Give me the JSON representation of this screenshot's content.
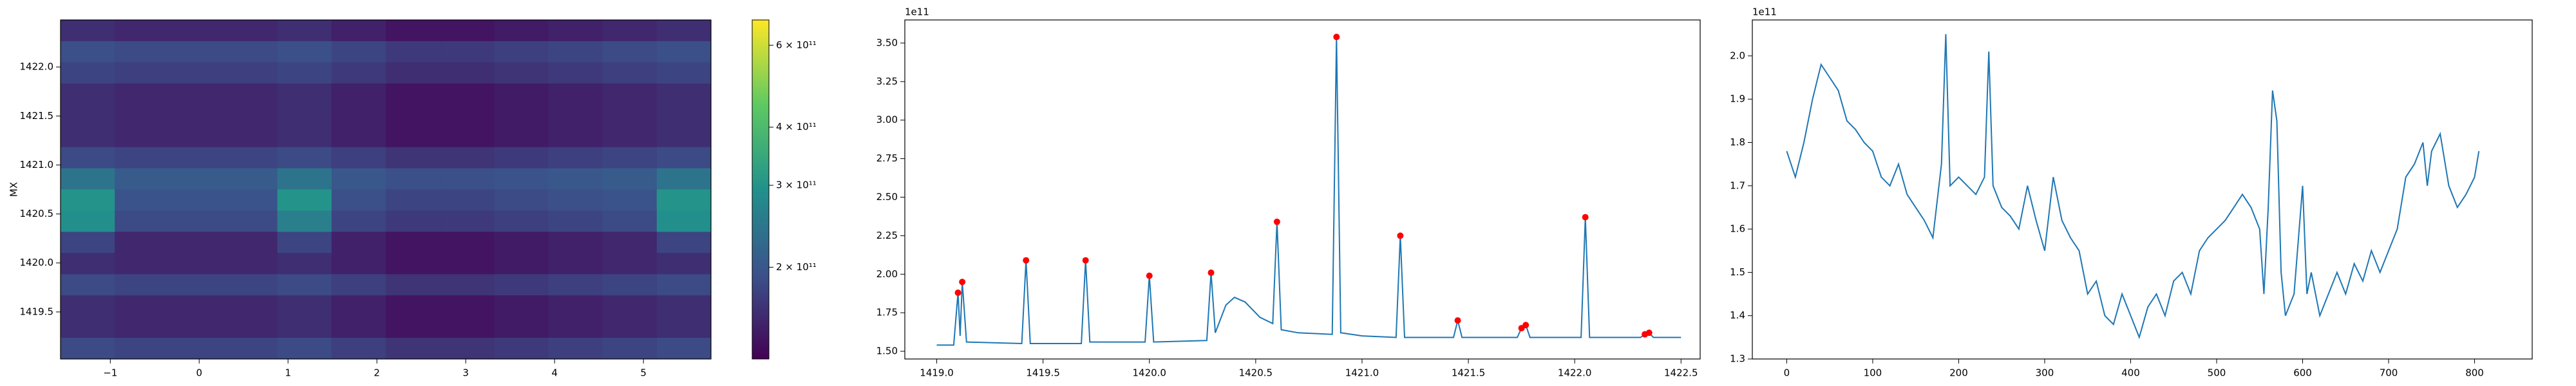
{
  "chart_data": [
    {
      "type": "heatmap",
      "ylabel": "MX",
      "xlim": [
        -1.56,
        5.76
      ],
      "ylim": [
        1419.02,
        1422.48
      ],
      "xticks": [
        {
          "value": -1,
          "label": "−1"
        },
        0,
        1,
        2,
        3,
        4,
        5
      ],
      "yticks": [
        1419.5,
        {
          "value": 1420,
          "label": "1420.0"
        },
        1420.5,
        {
          "value": 1421,
          "label": "1421.0"
        },
        1421.5,
        {
          "value": 1422,
          "label": "1422.0"
        }
      ],
      "colormap": "viridis",
      "color_scale": "log",
      "clim": [
        127000000000.0,
        680000000000.0
      ],
      "cticks": [
        {
          "value": 200000000000.0,
          "label": "2 × 10¹¹"
        },
        {
          "value": 300000000000.0,
          "label": "3 × 10¹¹"
        },
        {
          "value": 400000000000.0,
          "label": "4 × 10¹¹"
        },
        {
          "value": 600000000000.0,
          "label": "6 × 10¹¹"
        }
      ],
      "z": [
        [
          160000000000.0,
          155000000000.0,
          155000000000.0,
          155000000000.0,
          160000000000.0,
          150000000000.0,
          140000000000.0,
          140000000000.0,
          145000000000.0,
          150000000000.0,
          155000000000.0,
          160000000000.0
        ],
        [
          190000000000.0,
          185000000000.0,
          185000000000.0,
          185000000000.0,
          190000000000.0,
          180000000000.0,
          170000000000.0,
          170000000000.0,
          175000000000.0,
          180000000000.0,
          185000000000.0,
          190000000000.0
        ],
        [
          180000000000.0,
          175000000000.0,
          175000000000.0,
          175000000000.0,
          180000000000.0,
          170000000000.0,
          160000000000.0,
          160000000000.0,
          165000000000.0,
          170000000000.0,
          175000000000.0,
          180000000000.0
        ],
        [
          160000000000.0,
          155000000000.0,
          155000000000.0,
          155000000000.0,
          160000000000.0,
          150000000000.0,
          140000000000.0,
          140000000000.0,
          145000000000.0,
          150000000000.0,
          155000000000.0,
          160000000000.0
        ],
        [
          160000000000.0,
          155000000000.0,
          155000000000.0,
          155000000000.0,
          160000000000.0,
          150000000000.0,
          140000000000.0,
          140000000000.0,
          145000000000.0,
          150000000000.0,
          155000000000.0,
          160000000000.0
        ],
        [
          160000000000.0,
          155000000000.0,
          155000000000.0,
          155000000000.0,
          160000000000.0,
          150000000000.0,
          140000000000.0,
          140000000000.0,
          145000000000.0,
          150000000000.0,
          155000000000.0,
          160000000000.0
        ],
        [
          185000000000.0,
          180000000000.0,
          180000000000.0,
          180000000000.0,
          185000000000.0,
          175000000000.0,
          165000000000.0,
          165000000000.0,
          170000000000.0,
          175000000000.0,
          180000000000.0,
          185000000000.0
        ],
        [
          240000000000.0,
          205000000000.0,
          205000000000.0,
          205000000000.0,
          240000000000.0,
          200000000000.0,
          190000000000.0,
          190000000000.0,
          195000000000.0,
          200000000000.0,
          205000000000.0,
          240000000000.0
        ],
        [
          300000000000.0,
          195000000000.0,
          195000000000.0,
          195000000000.0,
          300000000000.0,
          190000000000.0,
          180000000000.0,
          180000000000.0,
          185000000000.0,
          190000000000.0,
          195000000000.0,
          300000000000.0
        ],
        [
          290000000000.0,
          185000000000.0,
          185000000000.0,
          185000000000.0,
          260000000000.0,
          180000000000.0,
          170000000000.0,
          170000000000.0,
          175000000000.0,
          180000000000.0,
          185000000000.0,
          290000000000.0
        ],
        [
          180000000000.0,
          155000000000.0,
          155000000000.0,
          155000000000.0,
          180000000000.0,
          150000000000.0,
          140000000000.0,
          140000000000.0,
          145000000000.0,
          150000000000.0,
          155000000000.0,
          180000000000.0
        ],
        [
          160000000000.0,
          155000000000.0,
          155000000000.0,
          155000000000.0,
          160000000000.0,
          150000000000.0,
          140000000000.0,
          140000000000.0,
          145000000000.0,
          150000000000.0,
          155000000000.0,
          160000000000.0
        ],
        [
          185000000000.0,
          180000000000.0,
          180000000000.0,
          180000000000.0,
          185000000000.0,
          175000000000.0,
          165000000000.0,
          165000000000.0,
          170000000000.0,
          175000000000.0,
          180000000000.0,
          185000000000.0
        ],
        [
          160000000000.0,
          155000000000.0,
          155000000000.0,
          155000000000.0,
          160000000000.0,
          150000000000.0,
          140000000000.0,
          140000000000.0,
          145000000000.0,
          150000000000.0,
          155000000000.0,
          160000000000.0
        ],
        [
          160000000000.0,
          155000000000.0,
          155000000000.0,
          155000000000.0,
          160000000000.0,
          150000000000.0,
          140000000000.0,
          140000000000.0,
          145000000000.0,
          150000000000.0,
          155000000000.0,
          160000000000.0
        ],
        [
          185000000000.0,
          180000000000.0,
          180000000000.0,
          180000000000.0,
          185000000000.0,
          175000000000.0,
          165000000000.0,
          165000000000.0,
          170000000000.0,
          175000000000.0,
          180000000000.0,
          185000000000.0
        ]
      ]
    },
    {
      "type": "line",
      "offset_label": "1e11",
      "color": "#1f77b4",
      "xlim": [
        1418.85,
        1422.59
      ],
      "ylim": [
        1.45,
        3.65
      ],
      "xticks": [
        {
          "value": 1419,
          "label": "1419.0"
        },
        1419.5,
        {
          "value": 1420,
          "label": "1420.0"
        },
        1420.5,
        {
          "value": 1421,
          "label": "1421.0"
        },
        1421.5,
        {
          "value": 1422,
          "label": "1422.0"
        },
        1422.5
      ],
      "yticks": [
        {
          "value": 1.5,
          "label": "1.50"
        },
        1.75,
        {
          "value": 2,
          "label": "2.00"
        },
        2.25,
        {
          "value": 2.5,
          "label": "2.50"
        },
        2.75,
        {
          "value": 3,
          "label": "3.00"
        },
        3.25,
        {
          "value": 3.5,
          "label": "3.50"
        }
      ],
      "x": [
        1419.0,
        1419.08,
        1419.1,
        1419.11,
        1419.12,
        1419.14,
        1419.4,
        1419.42,
        1419.44,
        1419.68,
        1419.7,
        1419.72,
        1419.98,
        1420.0,
        1420.02,
        1420.27,
        1420.29,
        1420.31,
        1420.36,
        1420.4,
        1420.45,
        1420.52,
        1420.58,
        1420.6,
        1420.62,
        1420.7,
        1420.86,
        1420.88,
        1420.9,
        1421.0,
        1421.16,
        1421.18,
        1421.2,
        1421.43,
        1421.45,
        1421.47,
        1421.73,
        1421.75,
        1421.77,
        1421.79,
        1422.03,
        1422.05,
        1422.07,
        1422.31,
        1422.33,
        1422.35,
        1422.37,
        1422.5
      ],
      "values": [
        1.54,
        1.54,
        1.88,
        1.6,
        1.95,
        1.56,
        1.55,
        2.09,
        1.55,
        1.55,
        2.09,
        1.56,
        1.56,
        1.99,
        1.56,
        1.57,
        2.01,
        1.62,
        1.8,
        1.85,
        1.82,
        1.72,
        1.68,
        2.34,
        1.64,
        1.62,
        1.61,
        3.54,
        1.62,
        1.6,
        1.59,
        2.25,
        1.59,
        1.59,
        1.7,
        1.59,
        1.59,
        1.65,
        1.67,
        1.59,
        1.59,
        2.37,
        1.59,
        1.59,
        1.61,
        1.62,
        1.59,
        1.59
      ],
      "markers": {
        "color": "#ff0000",
        "x": [
          1419.1,
          1419.12,
          1419.42,
          1419.7,
          1420.0,
          1420.29,
          1420.6,
          1420.88,
          1421.18,
          1421.45,
          1421.75,
          1421.77,
          1422.05,
          1422.33,
          1422.35
        ],
        "values": [
          1.88,
          1.95,
          2.09,
          2.09,
          1.99,
          2.01,
          2.34,
          3.54,
          2.25,
          1.7,
          1.65,
          1.67,
          2.37,
          1.61,
          1.62
        ]
      }
    },
    {
      "type": "line",
      "offset_label": "1e11",
      "color": "#1f77b4",
      "xlim": [
        -40,
        867
      ],
      "ylim": [
        1.3,
        2.083
      ],
      "xticks": [
        0,
        100,
        200,
        300,
        400,
        500,
        600,
        700,
        800
      ],
      "yticks": [
        1.3,
        1.4,
        1.5,
        1.6,
        1.7,
        1.8,
        1.9,
        {
          "value": 2,
          "label": "2.0"
        }
      ],
      "x": [
        0,
        10,
        20,
        30,
        40,
        50,
        60,
        70,
        80,
        90,
        100,
        110,
        120,
        130,
        140,
        150,
        160,
        170,
        180,
        185,
        190,
        200,
        210,
        220,
        230,
        235,
        240,
        250,
        260,
        270,
        280,
        290,
        300,
        310,
        320,
        330,
        340,
        350,
        360,
        370,
        380,
        390,
        400,
        410,
        420,
        430,
        440,
        450,
        460,
        470,
        480,
        490,
        500,
        510,
        520,
        530,
        540,
        550,
        555,
        560,
        565,
        570,
        575,
        580,
        590,
        600,
        605,
        610,
        620,
        630,
        640,
        650,
        660,
        670,
        680,
        690,
        700,
        710,
        720,
        730,
        740,
        745,
        750,
        760,
        770,
        780,
        790,
        800,
        805
      ],
      "values": [
        1.78,
        1.72,
        1.8,
        1.9,
        1.98,
        1.95,
        1.92,
        1.85,
        1.83,
        1.8,
        1.78,
        1.72,
        1.7,
        1.75,
        1.68,
        1.65,
        1.62,
        1.58,
        1.75,
        2.05,
        1.7,
        1.72,
        1.7,
        1.68,
        1.72,
        2.01,
        1.7,
        1.65,
        1.63,
        1.6,
        1.7,
        1.62,
        1.55,
        1.72,
        1.62,
        1.58,
        1.55,
        1.45,
        1.48,
        1.4,
        1.38,
        1.45,
        1.4,
        1.35,
        1.42,
        1.45,
        1.4,
        1.48,
        1.5,
        1.45,
        1.55,
        1.58,
        1.6,
        1.62,
        1.65,
        1.68,
        1.65,
        1.6,
        1.45,
        1.65,
        1.92,
        1.85,
        1.5,
        1.4,
        1.45,
        1.7,
        1.45,
        1.5,
        1.4,
        1.45,
        1.5,
        1.45,
        1.52,
        1.48,
        1.55,
        1.5,
        1.55,
        1.6,
        1.72,
        1.75,
        1.8,
        1.7,
        1.78,
        1.82,
        1.7,
        1.65,
        1.68,
        1.72,
        1.78
      ]
    }
  ]
}
